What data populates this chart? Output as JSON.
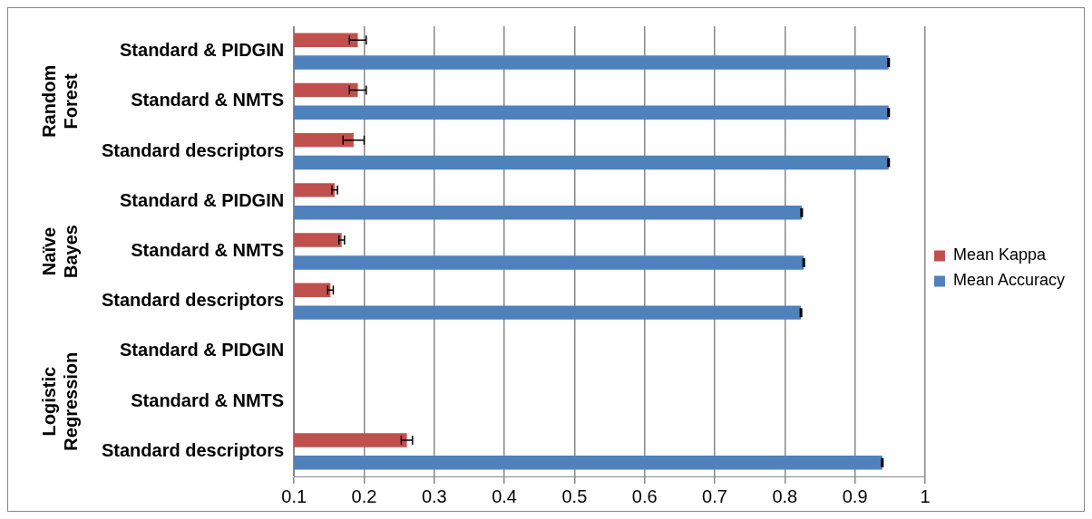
{
  "chart_data": {
    "type": "bar",
    "orientation": "horizontal",
    "categories": [
      "Standard & PIDGIN",
      "Standard & NMTS",
      "Standard descriptors",
      "Standard & PIDGIN",
      "Standard & NMTS",
      "Standard descriptors",
      "Standard & PIDGIN",
      "Standard & NMTS",
      "Standard descriptors"
    ],
    "series": [
      {
        "name": "Mean Kappa",
        "color": "#c0504d",
        "values": [
          0.191,
          0.191,
          0.185,
          0.158,
          0.168,
          0.152,
          null,
          null,
          0.261
        ],
        "errors": [
          0.012,
          0.012,
          0.015,
          0.004,
          0.004,
          0.004,
          null,
          null,
          0.008
        ]
      },
      {
        "name": "Mean Accuracy",
        "color": "#4f81bd",
        "values": [
          0.948,
          0.948,
          0.948,
          0.824,
          0.827,
          0.823,
          null,
          null,
          0.939
        ],
        "errors": [
          0.001,
          0.001,
          0.001,
          0.001,
          0.001,
          0.001,
          null,
          null,
          0.001
        ]
      }
    ],
    "xlim": [
      0.1,
      1
    ],
    "xticks": [
      0.1,
      0.2,
      0.3,
      0.4,
      0.5,
      0.6,
      0.7,
      0.8,
      0.9,
      1
    ],
    "grid": "x",
    "legend": "right",
    "annotations": [
      "Random Forest",
      "Naïve Bayes",
      "Logistic Regression"
    ]
  }
}
